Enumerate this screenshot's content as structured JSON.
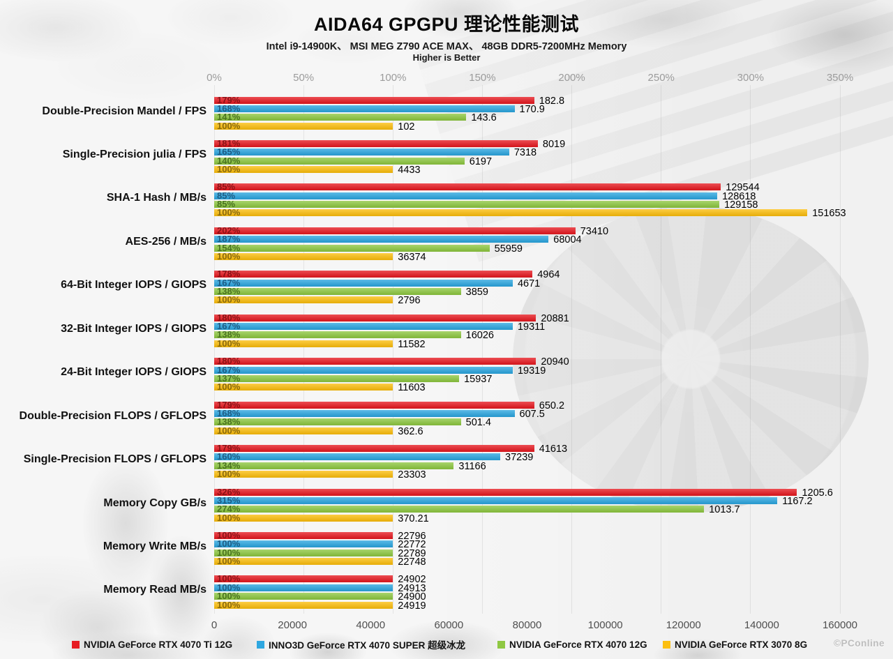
{
  "chart_data": {
    "type": "bar",
    "orientation": "horizontal",
    "title": "AIDA64 GPGPU 理论性能测试",
    "subtitle": "Intel i9-14900K、 MSI MEG Z790 ACE MAX、 48GB DDR5-7200MHz Memory",
    "note": "Higher is Better",
    "legend_position": "bottom",
    "axes": {
      "top_percent": {
        "unit": "%",
        "min": 0,
        "max": 350,
        "ticks": [
          "0%",
          "50%",
          "100%",
          "150%",
          "200%",
          "250%",
          "300%",
          "350%"
        ]
      },
      "bottom_value": {
        "min": 0,
        "max": 160000,
        "ticks": [
          "0",
          "20000",
          "40000",
          "60000",
          "80000",
          "100000",
          "120000",
          "140000",
          "160000"
        ]
      }
    },
    "series": [
      {
        "name": "NVIDIA GeForce RTX 4070 Ti 12G",
        "color": "#e71c23",
        "label_color": "#8c1216"
      },
      {
        "name": "INNO3D GeForce RTX 4070 SUPER 超级冰龙",
        "color": "#2ea7e0",
        "label_color": "#1d5d85"
      },
      {
        "name": "NVIDIA GeForce RTX 4070 12G",
        "color": "#8fc843",
        "label_color": "#4a7420"
      },
      {
        "name": "NVIDIA GeForce RTX 3070 8G",
        "color": "#fcbf10",
        "label_color": "#8a6a0c"
      }
    ],
    "categories": [
      {
        "label": "Double-Precision Mandel / FPS",
        "bar_scale": "percent",
        "percents": [
          179,
          168,
          141,
          100
        ],
        "values": [
          182.8,
          170.9,
          143.6,
          102
        ]
      },
      {
        "label": "Single-Precision julia / FPS",
        "bar_scale": "percent",
        "percents": [
          181,
          165,
          140,
          100
        ],
        "values": [
          8019,
          7318,
          6197,
          4433
        ]
      },
      {
        "label": "SHA-1 Hash / MB/s",
        "bar_scale": "value",
        "percents": [
          85,
          85,
          85,
          100
        ],
        "values": [
          129544,
          128618,
          129158,
          151653
        ]
      },
      {
        "label": "AES-256 / MB/s",
        "bar_scale": "percent",
        "percents": [
          202,
          187,
          154,
          100
        ],
        "values": [
          73410,
          68004,
          55959,
          36374
        ]
      },
      {
        "label": "64-Bit Integer IOPS / GIOPS",
        "bar_scale": "percent",
        "percents": [
          178,
          167,
          138,
          100
        ],
        "values": [
          4964,
          4671,
          3859,
          2796
        ]
      },
      {
        "label": "32-Bit Integer IOPS / GIOPS",
        "bar_scale": "percent",
        "percents": [
          180,
          167,
          138,
          100
        ],
        "values": [
          20881,
          19311,
          16026,
          11582
        ]
      },
      {
        "label": "24-Bit Integer IOPS / GIOPS",
        "bar_scale": "percent",
        "percents": [
          180,
          167,
          137,
          100
        ],
        "values": [
          20940,
          19319,
          15937,
          11603
        ]
      },
      {
        "label": "Double-Precision FLOPS / GFLOPS",
        "bar_scale": "percent",
        "percents": [
          179,
          168,
          138,
          100
        ],
        "values": [
          650.2,
          607.5,
          501.4,
          362.6
        ]
      },
      {
        "label": "Single-Precision FLOPS / GFLOPS",
        "bar_scale": "percent",
        "percents": [
          179,
          160,
          134,
          100
        ],
        "values": [
          41613,
          37239,
          31166,
          23303
        ]
      },
      {
        "label": "Memory Copy GB/s",
        "bar_scale": "percent",
        "percents": [
          326,
          315,
          274,
          100
        ],
        "values": [
          1205.6,
          1167.2,
          1013.7,
          370.21
        ]
      },
      {
        "label": "Memory Write MB/s",
        "bar_scale": "percent",
        "percents": [
          100,
          100,
          100,
          100
        ],
        "values": [
          22796,
          22772,
          22789,
          22748
        ]
      },
      {
        "label": "Memory Read MB/s",
        "bar_scale": "percent",
        "percents": [
          100,
          100,
          100,
          100
        ],
        "values": [
          24902,
          24913,
          24900,
          24919
        ]
      }
    ]
  },
  "watermark": {
    "logo": "©",
    "text": "PConline"
  }
}
